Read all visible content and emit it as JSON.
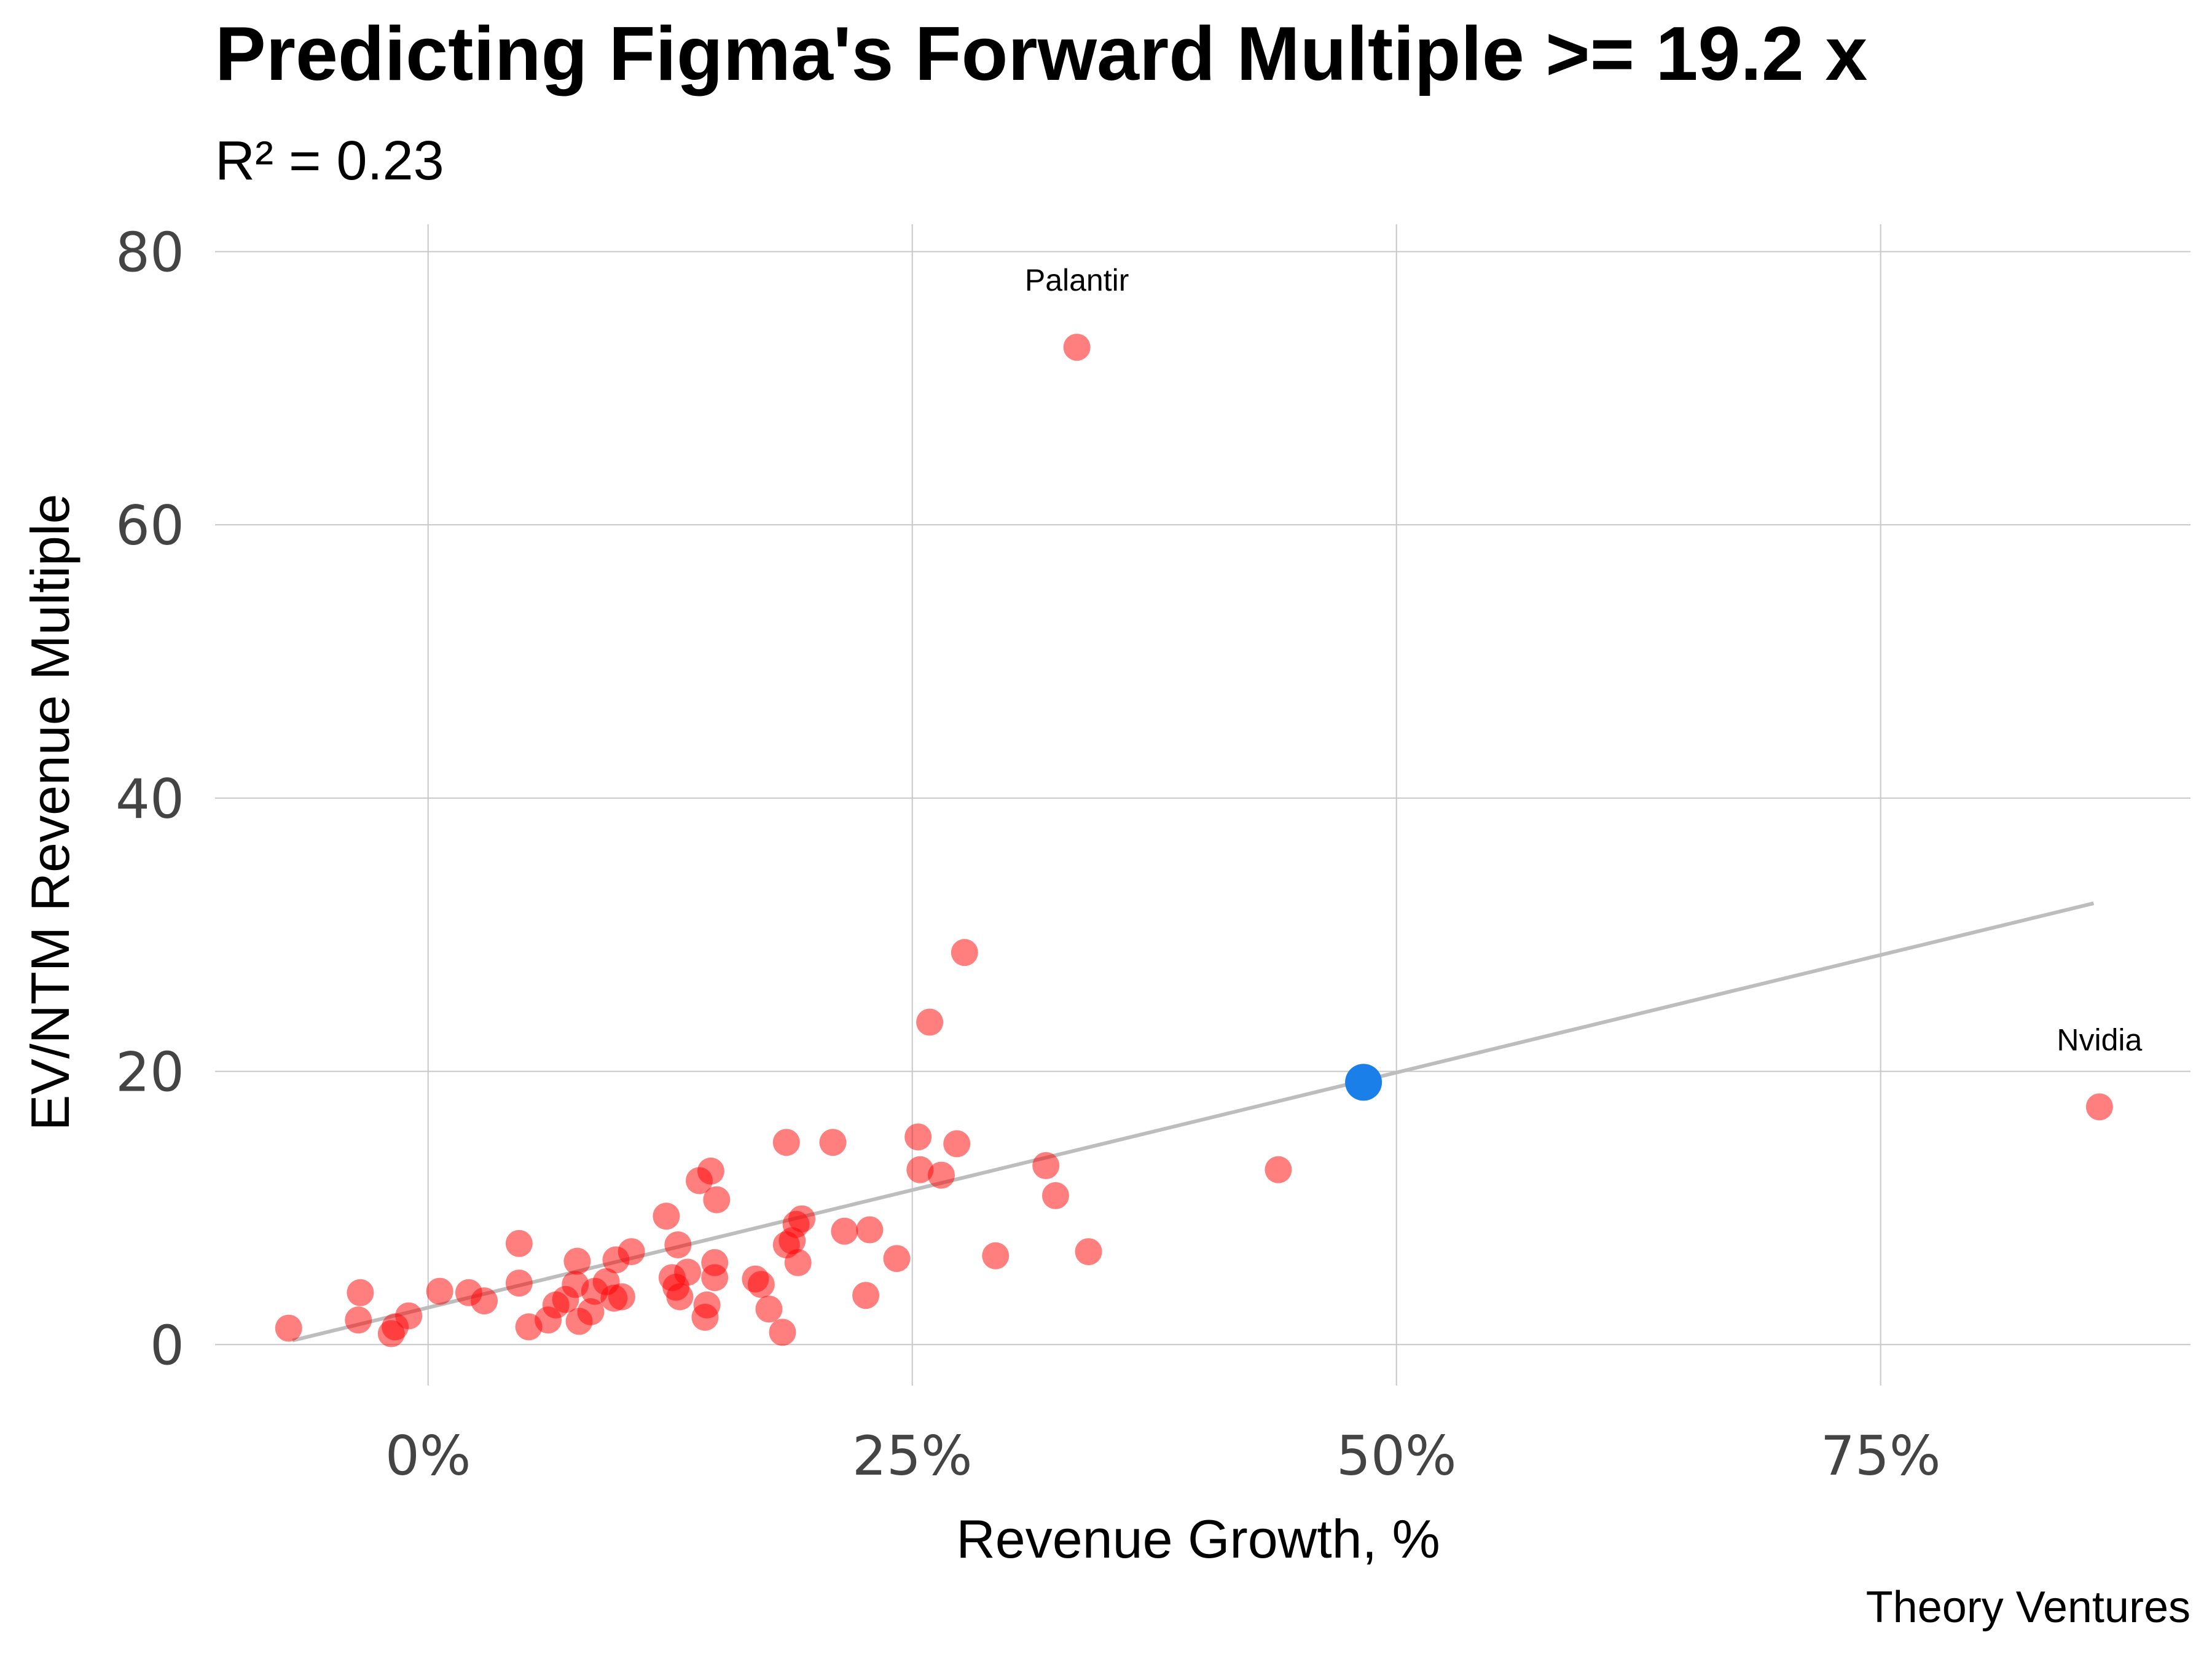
{
  "chart_data": {
    "type": "scatter",
    "title": "Predicting Figma's Forward Multiple >= 19.2 x",
    "subtitle": "R² = 0.23",
    "xlabel": "Revenue Growth, %",
    "ylabel": "EV/NTM Revenue Multiple",
    "credit": "Theory Ventures",
    "xlim": [
      -11,
      91
    ],
    "ylim": [
      -3,
      82
    ],
    "x_ticks": [
      0,
      25,
      50,
      75
    ],
    "x_tick_labels": [
      "0%",
      "25%",
      "50%",
      "75%"
    ],
    "y_ticks": [
      0,
      20,
      40,
      60,
      80
    ],
    "y_tick_labels": [
      "0",
      "20",
      "40",
      "60",
      "80"
    ],
    "grid": true,
    "colors": {
      "points": "#ff0000",
      "highlight": "#1a7fe8",
      "fit": "#bdbdbd"
    },
    "fit_line": {
      "x": [
        -7,
        86
      ],
      "y": [
        0.3,
        32.3
      ]
    },
    "highlight": {
      "x": 48.3,
      "y": 19.2
    },
    "annotations": [
      {
        "text": "Palantir",
        "x": 33.5,
        "y": 73
      },
      {
        "text": "Nvidia",
        "x": 86.3,
        "y": 17.4
      }
    ],
    "points": [
      [
        -7.2,
        1.2
      ],
      [
        -3.5,
        3.8
      ],
      [
        -3.6,
        1.8
      ],
      [
        -1.9,
        0.8
      ],
      [
        -1.7,
        1.3
      ],
      [
        -1.0,
        2.1
      ],
      [
        0.6,
        3.9
      ],
      [
        2.1,
        3.8
      ],
      [
        2.9,
        3.2
      ],
      [
        4.7,
        7.4
      ],
      [
        4.7,
        4.5
      ],
      [
        5.2,
        1.3
      ],
      [
        6.2,
        1.8
      ],
      [
        6.6,
        2.9
      ],
      [
        7.1,
        3.3
      ],
      [
        7.6,
        4.4
      ],
      [
        7.7,
        6.1
      ],
      [
        7.8,
        1.7
      ],
      [
        8.4,
        2.4
      ],
      [
        8.6,
        3.9
      ],
      [
        9.2,
        4.6
      ],
      [
        9.6,
        3.4
      ],
      [
        9.7,
        6.2
      ],
      [
        10.0,
        3.5
      ],
      [
        10.5,
        6.8
      ],
      [
        12.3,
        9.4
      ],
      [
        12.6,
        4.9
      ],
      [
        12.8,
        4.2
      ],
      [
        12.9,
        7.3
      ],
      [
        13.0,
        3.5
      ],
      [
        13.4,
        5.3
      ],
      [
        14.0,
        12.0
      ],
      [
        14.3,
        2.0
      ],
      [
        14.4,
        2.9
      ],
      [
        14.6,
        12.7
      ],
      [
        14.9,
        10.6
      ],
      [
        14.8,
        6.0
      ],
      [
        14.8,
        4.9
      ],
      [
        16.9,
        4.8
      ],
      [
        17.2,
        4.4
      ],
      [
        17.6,
        2.6
      ],
      [
        18.3,
        0.9
      ],
      [
        18.5,
        14.8
      ],
      [
        18.5,
        7.3
      ],
      [
        18.8,
        7.6
      ],
      [
        19.0,
        8.8
      ],
      [
        19.1,
        6.0
      ],
      [
        19.3,
        9.2
      ],
      [
        20.9,
        14.8
      ],
      [
        21.5,
        8.3
      ],
      [
        22.6,
        3.6
      ],
      [
        22.8,
        8.4
      ],
      [
        24.2,
        6.3
      ],
      [
        25.3,
        15.2
      ],
      [
        25.4,
        12.8
      ],
      [
        25.9,
        23.6
      ],
      [
        26.5,
        12.4
      ],
      [
        27.3,
        14.7
      ],
      [
        27.7,
        28.7
      ],
      [
        29.3,
        6.5
      ],
      [
        31.9,
        13.1
      ],
      [
        32.4,
        10.9
      ],
      [
        33.5,
        73.0
      ],
      [
        34.1,
        6.8
      ],
      [
        43.9,
        12.8
      ],
      [
        86.3,
        17.4
      ]
    ]
  }
}
